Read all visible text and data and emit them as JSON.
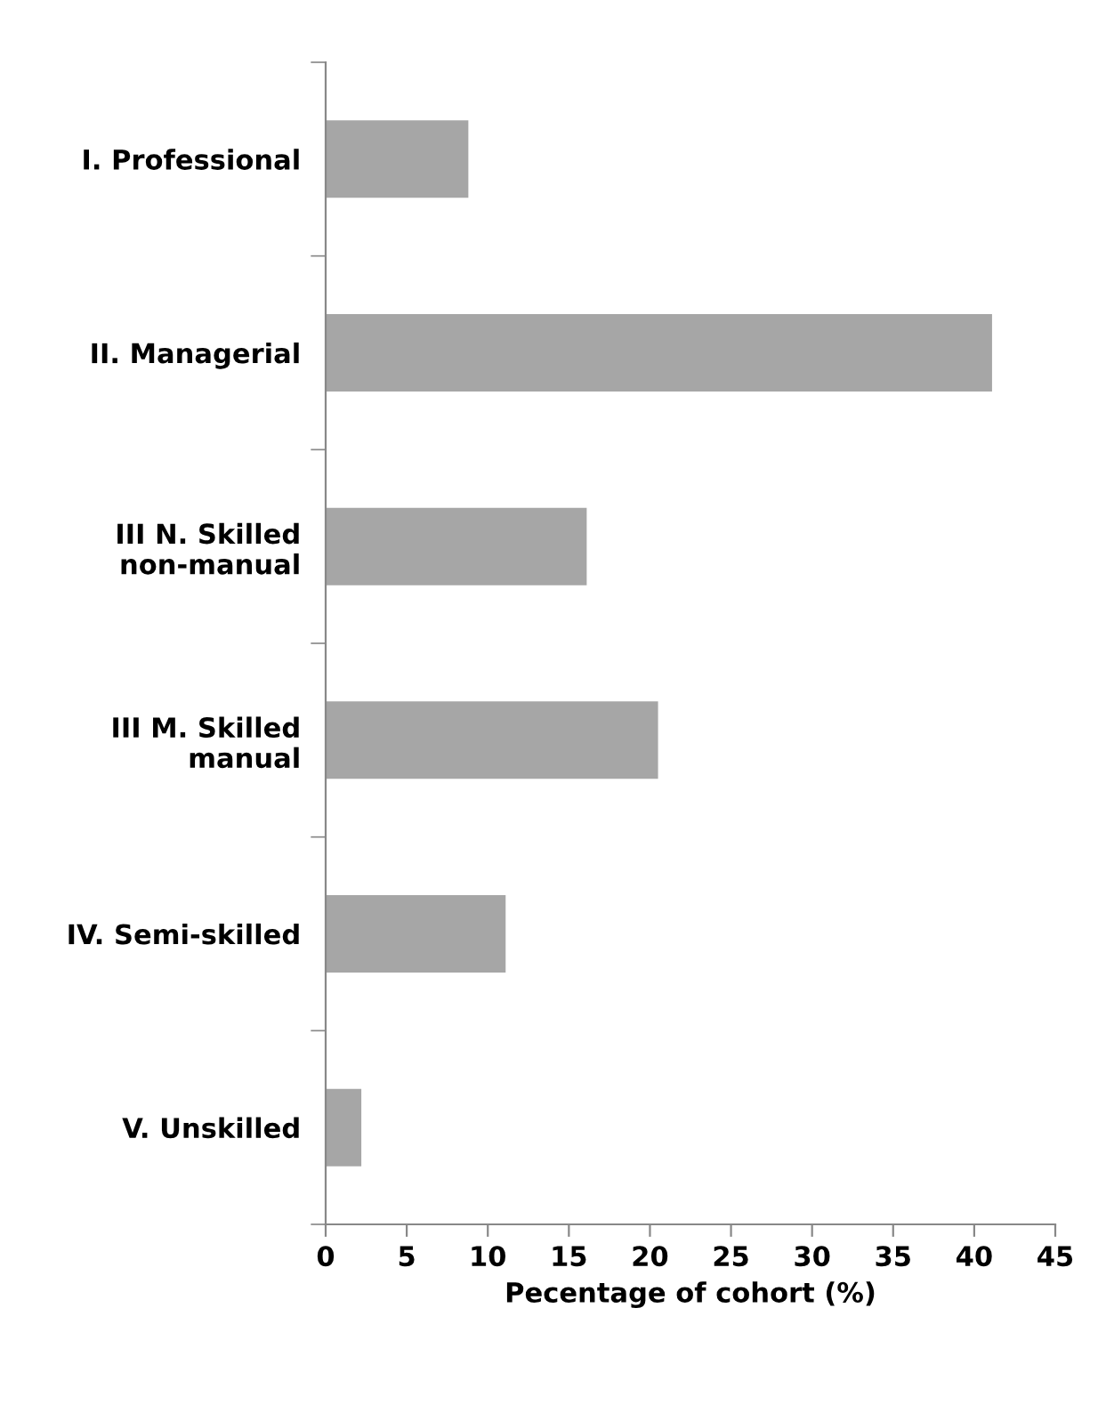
{
  "chart_data": {
    "type": "bar",
    "orientation": "horizontal",
    "categories": [
      "I. Professional",
      "II. Managerial",
      "III N. Skilled\nnon-manual",
      "III M. Skilled\nmanual",
      "IV. Semi-skilled",
      "V. Unskilled"
    ],
    "values": [
      8.8,
      41.1,
      16.1,
      20.5,
      11.1,
      2.2
    ],
    "color": "#a6a6a6",
    "xlim": [
      0,
      45
    ],
    "xticks": [
      0,
      5,
      10,
      15,
      20,
      25,
      30,
      35,
      40,
      45
    ],
    "xlabel": "Pecentage of cohort (%)",
    "grid": false,
    "legend": false
  }
}
